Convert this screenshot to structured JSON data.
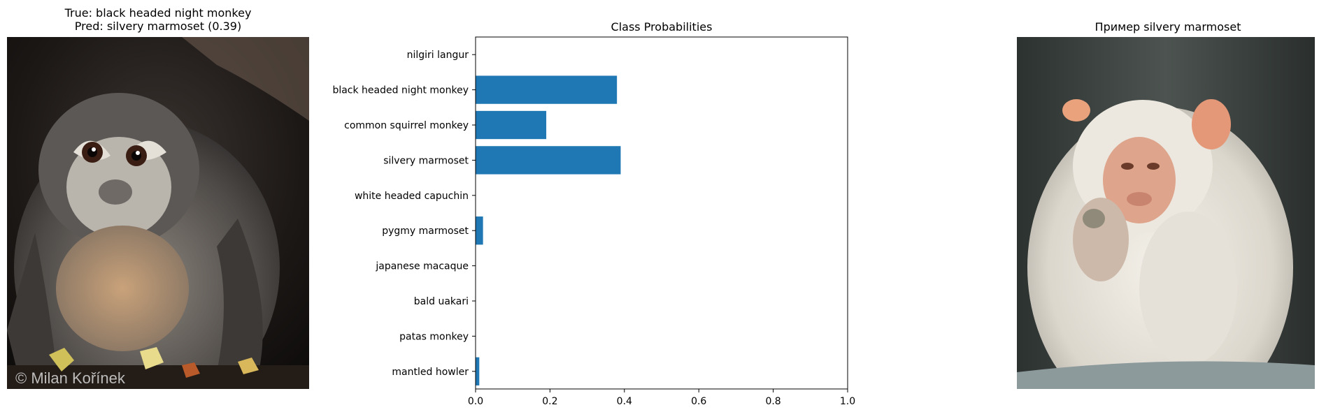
{
  "left_panel": {
    "title_true": "True: black headed night monkey",
    "title_pred": "Pred: silvery marmoset (0.39)",
    "watermark": "© Milan Kořínek"
  },
  "right_panel": {
    "title": "Пример silvery marmoset"
  },
  "chart_data": {
    "type": "bar",
    "orientation": "horizontal",
    "title": "Class Probabilities",
    "xlabel": "",
    "ylabel": "",
    "xlim": [
      0,
      1.0
    ],
    "xticks": [
      0.0,
      0.2,
      0.4,
      0.6,
      0.8,
      1.0
    ],
    "xtick_labels": [
      "0.0",
      "0.2",
      "0.4",
      "0.6",
      "0.8",
      "1.0"
    ],
    "categories": [
      "nilgiri langur",
      "black headed night monkey",
      "common squirrel monkey",
      "silvery marmoset",
      "white headed capuchin",
      "pygmy marmoset",
      "japanese macaque",
      "bald uakari",
      "patas monkey",
      "mantled howler"
    ],
    "values": [
      0.0,
      0.38,
      0.19,
      0.39,
      0.0,
      0.02,
      0.0,
      0.0,
      0.0,
      0.01
    ],
    "bar_color": "#1f77b4",
    "grid": false
  }
}
